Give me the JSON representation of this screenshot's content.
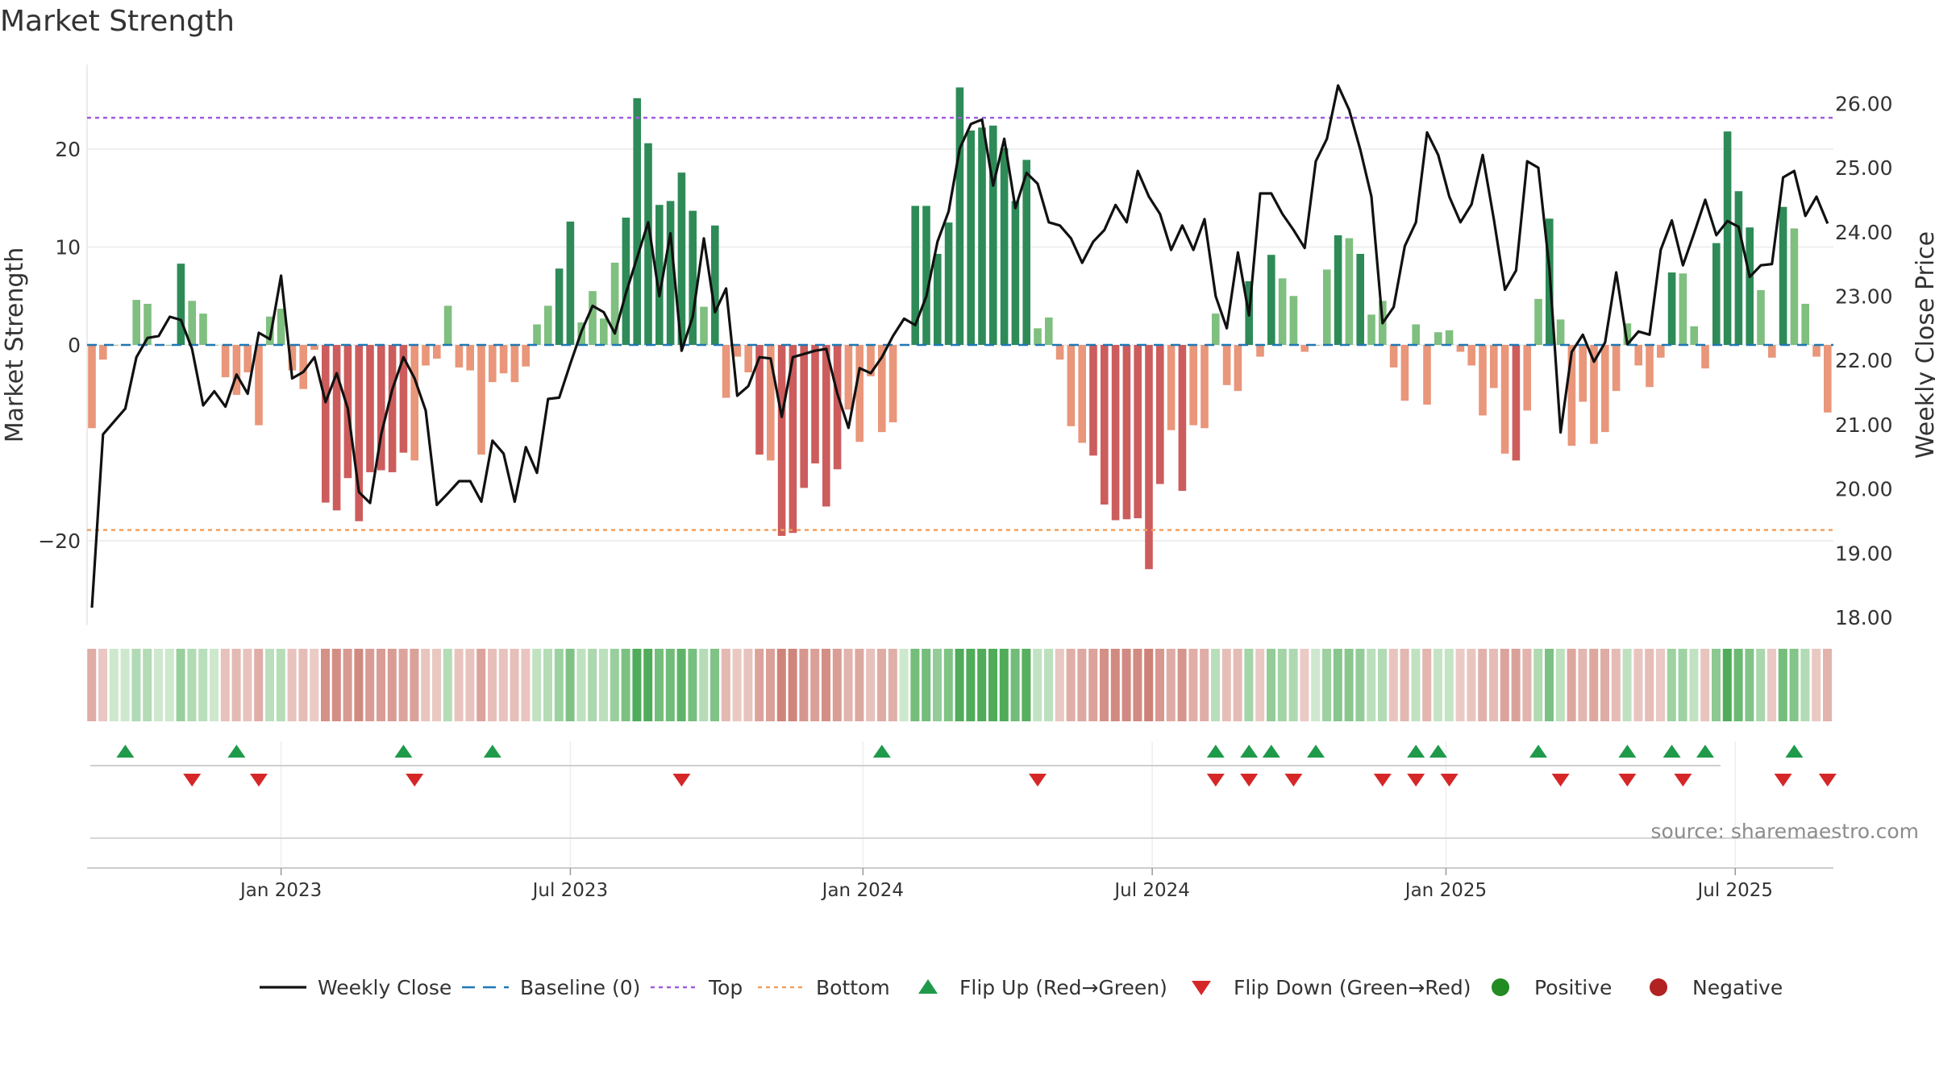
{
  "chart_data": {
    "type": "bar",
    "title": "Market Strength",
    "ylabel_left": "Market Strength",
    "ylabel_right": "Weekly Close Price",
    "source": "source: sharemaestro.com",
    "ylim_left": [
      -26,
      28.5
    ],
    "ylim_right": [
      18.0,
      26.5
    ],
    "left_ticks": [
      "20",
      "10",
      "0",
      "−20"
    ],
    "left_tick_values": [
      20,
      10,
      0,
      -20
    ],
    "right_ticks": [
      "26.00",
      "25.00",
      "24.00",
      "23.00",
      "22.00",
      "21.00",
      "20.00",
      "19.00",
      "18.00"
    ],
    "right_tick_values": [
      26,
      25,
      24,
      23,
      22,
      21,
      20,
      19,
      18
    ],
    "x_ticks": [
      "Jan 2023",
      "Jul 2023",
      "Jan 2024",
      "Jul 2024",
      "Jan 2025",
      "Jul 2025"
    ],
    "x_tick_weeks": [
      17,
      43,
      69.3,
      95.3,
      121.7,
      147.7
    ],
    "top_level": 23.2,
    "bottom_level": -18.9,
    "strength": [
      -8.5,
      -1.5,
      0,
      0,
      4.6,
      4.2,
      0,
      0,
      8.3,
      4.5,
      3.2,
      0,
      -3.3,
      -5.1,
      -2.8,
      -8.2,
      2.9,
      3.7,
      -2.6,
      -4.5,
      -0.5,
      -16.1,
      -16.9,
      -13.6,
      -18,
      -13,
      -12.8,
      -13,
      -11,
      -11.8,
      -2.1,
      -1.4,
      4,
      -2.3,
      -2.6,
      -11.2,
      -3.8,
      -2.9,
      -3.8,
      -2.2,
      2.1,
      4,
      7.8,
      12.6,
      2.3,
      5.5,
      2.7,
      8.4,
      13,
      25.2,
      20.6,
      14.3,
      14.7,
      17.6,
      13.7,
      3.9,
      12.2,
      -5.4,
      -1.2,
      -2.8,
      -11.2,
      -11.8,
      -19.5,
      -19.2,
      -14.6,
      -12.1,
      -16.5,
      -12.7,
      -6.6,
      -9.9,
      -3.2,
      -8.9,
      -7.9,
      0,
      14.2,
      14.2,
      9.3,
      12.5,
      26.3,
      21.9,
      22.2,
      22.4,
      20.1,
      14.7,
      18.9,
      1.7,
      2.8,
      -1.5,
      -8.3,
      -10,
      -11.3,
      -16.3,
      -17.9,
      -17.8,
      -17.7,
      -22.9,
      -14.2,
      -8.7,
      -14.9,
      -8.2,
      -8.5,
      3.2,
      -4.1,
      -4.7,
      6.5,
      -1.2,
      9.2,
      6.8,
      5,
      -0.7,
      0,
      7.7,
      11.2,
      10.9,
      9.3,
      3.1,
      4.5,
      -2.3,
      -5.7,
      2.1,
      -6.1,
      1.3,
      1.5,
      -0.7,
      -2.1,
      -7.2,
      -4.4,
      -11.1,
      -11.8,
      -6.7,
      4.7,
      12.9,
      2.6,
      -10.3,
      -5.8,
      -10.1,
      -8.9,
      -4.7,
      2.2,
      -2.1,
      -4.3,
      -1.3,
      7.4,
      7.3,
      1.9,
      -2.4,
      10.4,
      21.8,
      15.7,
      12,
      5.6,
      -1.3,
      14.1,
      11.9,
      4.2,
      -1.2,
      -6.9
    ],
    "weekly_close": [
      18.15,
      20.85,
      21.05,
      21.25,
      22.05,
      22.35,
      22.38,
      22.68,
      22.63,
      22.18,
      21.3,
      21.52,
      21.28,
      21.78,
      21.48,
      22.43,
      22.33,
      23.32,
      21.72,
      21.82,
      22.05,
      21.35,
      21.8,
      21.25,
      19.95,
      19.78,
      20.85,
      21.55,
      22.05,
      21.72,
      21.22,
      19.75,
      19.93,
      20.12,
      20.12,
      19.8,
      20.75,
      20.55,
      19.8,
      20.65,
      20.25,
      21.4,
      21.42,
      21.95,
      22.45,
      22.85,
      22.75,
      22.42,
      23.05,
      23.6,
      24.15,
      23.0,
      23.98,
      22.15,
      22.68,
      23.9,
      22.75,
      23.12,
      21.45,
      21.6,
      22.05,
      22.03,
      21.12,
      22.05,
      22.1,
      22.15,
      22.18,
      21.48,
      20.95,
      21.88,
      21.8,
      22.05,
      22.38,
      22.65,
      22.55,
      23.0,
      23.85,
      24.32,
      25.3,
      25.68,
      25.75,
      24.72,
      25.45,
      24.37,
      24.92,
      24.75,
      24.15,
      24.1,
      23.9,
      23.52,
      23.85,
      24.03,
      24.42,
      24.15,
      24.95,
      24.55,
      24.28,
      23.72,
      24.1,
      23.72,
      24.2,
      23.0,
      22.5,
      23.68,
      22.7,
      24.6,
      24.6,
      24.28,
      24.03,
      23.75,
      25.1,
      25.45,
      26.28,
      25.9,
      25.28,
      24.55,
      22.58,
      22.83,
      23.78,
      24.15,
      25.55,
      25.2,
      24.55,
      24.15,
      24.43,
      25.2,
      24.2,
      23.1,
      23.4,
      25.1,
      25.0,
      23.42,
      20.88,
      22.13,
      22.4,
      21.98,
      22.28,
      23.37,
      22.25,
      22.45,
      22.4,
      23.72,
      24.18,
      23.48,
      23.98,
      24.5,
      23.95,
      24.17,
      24.08,
      23.3,
      23.48,
      23.5,
      24.85,
      24.95,
      24.25,
      24.55,
      24.13
    ],
    "flip_up_weeks": [
      3,
      13,
      28,
      36,
      71,
      101,
      104,
      106,
      110,
      119,
      121,
      130,
      138,
      142,
      145,
      153
    ],
    "flip_down_weeks": [
      9,
      15,
      29,
      53,
      85,
      101,
      104,
      108,
      116,
      119,
      122,
      132,
      138,
      143,
      152,
      156
    ],
    "legend": [
      {
        "label": "Weekly Close",
        "kind": "line",
        "color": "#111111"
      },
      {
        "label": "Baseline (0)",
        "kind": "dash",
        "color": "#1f77b4"
      },
      {
        "label": "Top",
        "kind": "dot",
        "color": "#a05ce0"
      },
      {
        "label": "Bottom",
        "kind": "dot",
        "color": "#f0a060"
      },
      {
        "label": "Flip Up (Red→Green)",
        "kind": "tri-up",
        "color": "#1f9a4a"
      },
      {
        "label": "Flip Down (Green→Red)",
        "kind": "tri-down",
        "color": "#d62728"
      },
      {
        "label": "Positive",
        "kind": "circle",
        "color": "#228b22"
      },
      {
        "label": "Negative",
        "kind": "circle",
        "color": "#b22222"
      }
    ],
    "colors": {
      "pos_strong": "#2e8b57",
      "pos_weak": "#7fbf7f",
      "neg_strong": "#cd5c5c",
      "neg_weak": "#e9967a",
      "close_line": "#111111",
      "baseline": "#1f77b4",
      "top": "#a05ce0",
      "bottom": "#f0a060",
      "flip_up": "#1f9a4a",
      "flip_down": "#d62728"
    }
  }
}
